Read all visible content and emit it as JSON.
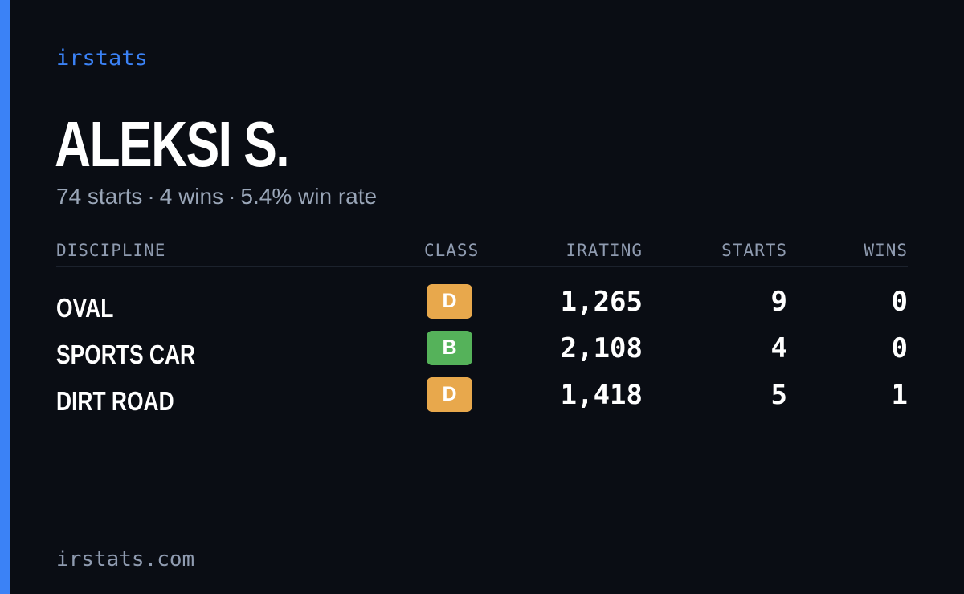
{
  "brand": "irstats",
  "driver": {
    "name": "ALEKSI S.",
    "summary": {
      "starts": "74 starts",
      "wins": "4 wins",
      "win_rate": "5.4% win rate",
      "separator": "·"
    }
  },
  "table": {
    "headers": {
      "discipline": "DISCIPLINE",
      "class": "CLASS",
      "irating": "IRATING",
      "starts": "STARTS",
      "wins": "WINS"
    },
    "rows": [
      {
        "discipline": "OVAL",
        "class": "D",
        "irating": "1,265",
        "starts": "9",
        "wins": "0"
      },
      {
        "discipline": "SPORTS CAR",
        "class": "B",
        "irating": "2,108",
        "starts": "4",
        "wins": "0"
      },
      {
        "discipline": "DIRT ROAD",
        "class": "D",
        "irating": "1,418",
        "starts": "5",
        "wins": "1"
      }
    ]
  },
  "footer": "irstats.com",
  "colors": {
    "accent": "#3b82f6",
    "background": "#0a0d14",
    "class_d": "#e8a84c",
    "class_b": "#55b25a"
  }
}
